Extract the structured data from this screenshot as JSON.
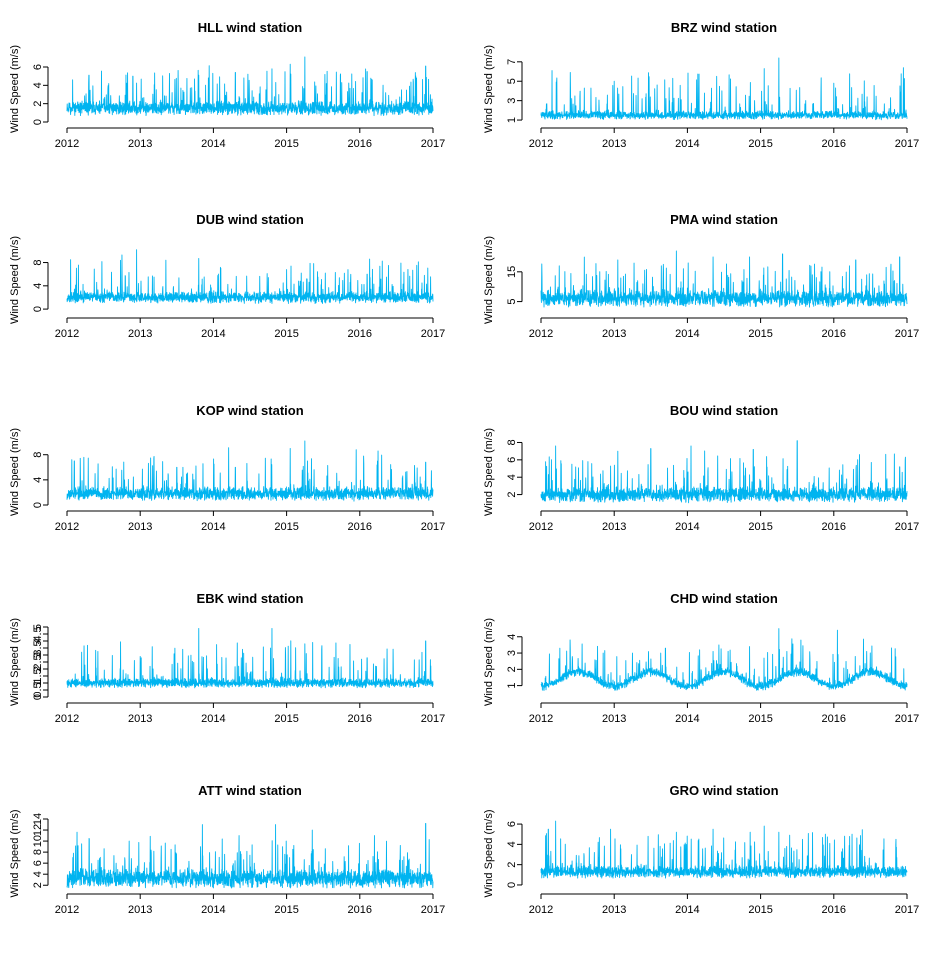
{
  "figure": {
    "ylabel": "Wind Speed (m/s)",
    "series_color": "#00B4F0"
  },
  "chart_data": [
    {
      "type": "line",
      "title": "HLL wind station",
      "ylabel": "Wind Speed (m/s)",
      "xlim": [
        2012,
        2017
      ],
      "x_ticks": [
        "2012",
        "2013",
        "2014",
        "2015",
        "2016",
        "2017"
      ],
      "ylim": [
        0,
        7.2
      ],
      "y_ticks": [
        0,
        2,
        4,
        6
      ],
      "series": [
        {
          "name": "HLL",
          "base": 1.5,
          "noise": 0.7,
          "spike_max": 7.1,
          "y_min": 0.3,
          "seed": 11,
          "peaks": [
            [
              2012.3,
              5.1
            ],
            [
              2012.9,
              5.0
            ],
            [
              2013.4,
              5.3
            ],
            [
              2013.8,
              5.1
            ],
            [
              2014.3,
              5.4
            ],
            [
              2014.8,
              5.8
            ],
            [
              2015.05,
              6.3
            ],
            [
              2015.25,
              7.1
            ],
            [
              2016.1,
              5.5
            ],
            [
              2016.9,
              6.1
            ]
          ]
        }
      ]
    },
    {
      "type": "line",
      "title": "BRZ wind station",
      "ylabel": "Wind Speed (m/s)",
      "xlim": [
        2012,
        2017
      ],
      "x_ticks": [
        "2012",
        "2013",
        "2014",
        "2015",
        "2016",
        "2017"
      ],
      "ylim": [
        0.8,
        7.6
      ],
      "y_ticks": [
        1,
        3,
        5,
        7
      ],
      "series": [
        {
          "name": "BRZ",
          "base": 1.5,
          "noise": 0.4,
          "spike_max": 7.5,
          "y_min": 1.0,
          "seed": 23,
          "peaks": [
            [
              2012.15,
              6.1
            ],
            [
              2012.4,
              5.9
            ],
            [
              2013.0,
              5.0
            ],
            [
              2013.8,
              5.3
            ],
            [
              2014.4,
              5.5
            ],
            [
              2015.05,
              6.3
            ],
            [
              2015.25,
              7.4
            ],
            [
              2016.0,
              4.8
            ],
            [
              2016.95,
              6.4
            ]
          ]
        }
      ]
    },
    {
      "type": "line",
      "title": "DUB wind station",
      "ylabel": "Wind Speed (m/s)",
      "xlim": [
        2012,
        2017
      ],
      "x_ticks": [
        "2012",
        "2013",
        "2014",
        "2015",
        "2016",
        "2017"
      ],
      "ylim": [
        -0.5,
        10.5
      ],
      "y_ticks": [
        0,
        4,
        8
      ],
      "series": [
        {
          "name": "DUB",
          "base": 2.0,
          "noise": 0.9,
          "spike_max": 10.2,
          "y_min": 0.5,
          "seed": 37,
          "peaks": [
            [
              2012.05,
              8.5
            ],
            [
              2012.75,
              9.3
            ],
            [
              2012.95,
              10.2
            ],
            [
              2013.35,
              8.4
            ],
            [
              2013.8,
              8.7
            ],
            [
              2015.0,
              6.8
            ],
            [
              2015.2,
              6.2
            ],
            [
              2016.1,
              6.0
            ],
            [
              2016.85,
              4.5
            ]
          ]
        }
      ]
    },
    {
      "type": "line",
      "title": "PMA wind station",
      "ylabel": "Wind Speed (m/s)",
      "xlim": [
        2012,
        2017
      ],
      "x_ticks": [
        "2012",
        "2013",
        "2014",
        "2015",
        "2016",
        "2017"
      ],
      "ylim": [
        1.5,
        23
      ],
      "y_ticks": [
        5,
        15
      ],
      "series": [
        {
          "name": "PMA",
          "base": 6.0,
          "noise": 2.5,
          "spike_max": 22.0,
          "y_min": 2.5,
          "seed": 41,
          "peaks": [
            [
              2012.25,
              17
            ],
            [
              2013.05,
              19
            ],
            [
              2013.85,
              22
            ],
            [
              2014.35,
              20
            ],
            [
              2014.85,
              20
            ],
            [
              2015.3,
              21
            ],
            [
              2016.3,
              19
            ],
            [
              2016.9,
              20
            ]
          ]
        }
      ]
    },
    {
      "type": "line",
      "title": "KOP wind station",
      "ylabel": "Wind Speed (m/s)",
      "xlim": [
        2012,
        2017
      ],
      "x_ticks": [
        "2012",
        "2013",
        "2014",
        "2015",
        "2016",
        "2017"
      ],
      "ylim": [
        0,
        10.5
      ],
      "y_ticks": [
        0,
        4,
        8
      ],
      "series": [
        {
          "name": "KOP",
          "base": 1.8,
          "noise": 1.0,
          "spike_max": 10.2,
          "y_min": 0.3,
          "seed": 53,
          "peaks": [
            [
              2012.1,
              7
            ],
            [
              2013.5,
              6
            ],
            [
              2014.3,
              6
            ],
            [
              2015.05,
              9
            ],
            [
              2015.25,
              10.2
            ],
            [
              2015.95,
              8.8
            ],
            [
              2016.25,
              8.6
            ],
            [
              2016.9,
              6.8
            ]
          ]
        }
      ]
    },
    {
      "type": "line",
      "title": "BOU wind station",
      "ylabel": "Wind Speed (m/s)",
      "xlim": [
        2012,
        2017
      ],
      "x_ticks": [
        "2012",
        "2013",
        "2014",
        "2015",
        "2016",
        "2017"
      ],
      "ylim": [
        0.8,
        8.4
      ],
      "y_ticks": [
        2,
        4,
        6,
        8
      ],
      "series": [
        {
          "name": "BOU",
          "base": 2.0,
          "noise": 0.8,
          "spike_max": 8.2,
          "y_min": 1.0,
          "seed": 67,
          "peaks": [
            [
              2012.2,
              7.6
            ],
            [
              2013.05,
              7.0
            ],
            [
              2013.5,
              7.3
            ],
            [
              2014.05,
              7.6
            ],
            [
              2014.9,
              7.2
            ],
            [
              2015.5,
              8.2
            ],
            [
              2016.35,
              6.6
            ],
            [
              2016.9,
              5.2
            ]
          ]
        }
      ]
    },
    {
      "type": "line",
      "title": "EBK wind station",
      "ylabel": "Wind Speed (m/s)",
      "xlim": [
        2012,
        2017
      ],
      "x_ticks": [
        "2012",
        "2013",
        "2014",
        "2015",
        "2016",
        "2017"
      ],
      "ylim": [
        0,
        5
      ],
      "y_ticks": [
        0,
        0.5,
        1,
        1.5,
        2,
        2.5,
        3,
        3.5,
        4,
        4.5,
        5
      ],
      "series": [
        {
          "name": "EBK",
          "base": 1.0,
          "noise": 0.3,
          "spike_max": 4.9,
          "y_min": 0.3,
          "seed": 79,
          "peaks": [
            [
              2012.2,
              3.2
            ],
            [
              2013.0,
              2.9
            ],
            [
              2013.8,
              4.9
            ],
            [
              2014.8,
              4.9
            ],
            [
              2015.25,
              3.8
            ],
            [
              2016.1,
              2.8
            ],
            [
              2016.9,
              4.0
            ]
          ]
        }
      ]
    },
    {
      "type": "line",
      "title": "CHD wind station",
      "ylabel": "Wind Speed (m/s)",
      "xlim": [
        2012,
        2017
      ],
      "x_ticks": [
        "2012",
        "2013",
        "2014",
        "2015",
        "2016",
        "2017"
      ],
      "ylim": [
        0.3,
        4.6
      ],
      "y_ticks": [
        1,
        2,
        3,
        4
      ],
      "series": [
        {
          "name": "CHD",
          "base": 1.4,
          "noise": 0.25,
          "spike_max": 4.5,
          "y_min": 0.7,
          "seed": 83,
          "seasonal": 0.45,
          "peaks": [
            [
              2012.85,
              3.0
            ],
            [
              2013.25,
              3.0
            ],
            [
              2013.7,
              3.3
            ],
            [
              2014.35,
              3.1
            ],
            [
              2014.85,
              3.4
            ],
            [
              2015.25,
              4.5
            ],
            [
              2015.55,
              3.8
            ],
            [
              2016.05,
              4.4
            ],
            [
              2016.45,
              3.1
            ]
          ]
        }
      ]
    },
    {
      "type": "line",
      "title": "ATT wind station",
      "ylabel": "Wind Speed (m/s)",
      "xlim": [
        2012,
        2017
      ],
      "x_ticks": [
        "2012",
        "2013",
        "2014",
        "2015",
        "2016",
        "2017"
      ],
      "ylim": [
        1.5,
        14
      ],
      "y_ticks": [
        2,
        4,
        6,
        8,
        10,
        12,
        14
      ],
      "series": [
        {
          "name": "ATT",
          "base": 3.2,
          "noise": 1.6,
          "spike_max": 13.2,
          "y_min": 1.5,
          "seed": 97,
          "peaks": [
            [
              2012.2,
              9.5
            ],
            [
              2012.85,
              10
            ],
            [
              2013.85,
              13
            ],
            [
              2014.35,
              11
            ],
            [
              2014.85,
              13
            ],
            [
              2015.35,
              12
            ],
            [
              2016.2,
              11
            ],
            [
              2016.9,
              13.2
            ]
          ]
        }
      ]
    },
    {
      "type": "line",
      "title": "GRO wind station",
      "ylabel": "Wind Speed (m/s)",
      "xlim": [
        2012,
        2017
      ],
      "x_ticks": [
        "2012",
        "2013",
        "2014",
        "2015",
        "2016",
        "2017"
      ],
      "ylim": [
        -0.3,
        6.5
      ],
      "y_ticks": [
        0,
        2,
        4,
        6
      ],
      "series": [
        {
          "name": "GRO",
          "base": 1.3,
          "noise": 0.55,
          "spike_max": 6.3,
          "y_min": 0.4,
          "seed": 101,
          "peaks": [
            [
              2012.1,
              5.5
            ],
            [
              2012.2,
              6.3
            ],
            [
              2012.95,
              5.5
            ],
            [
              2013.85,
              5.2
            ],
            [
              2014.35,
              5.5
            ],
            [
              2015.05,
              5.8
            ],
            [
              2015.25,
              5.2
            ],
            [
              2016.25,
              5.0
            ],
            [
              2016.85,
              4.5
            ]
          ]
        }
      ]
    }
  ]
}
